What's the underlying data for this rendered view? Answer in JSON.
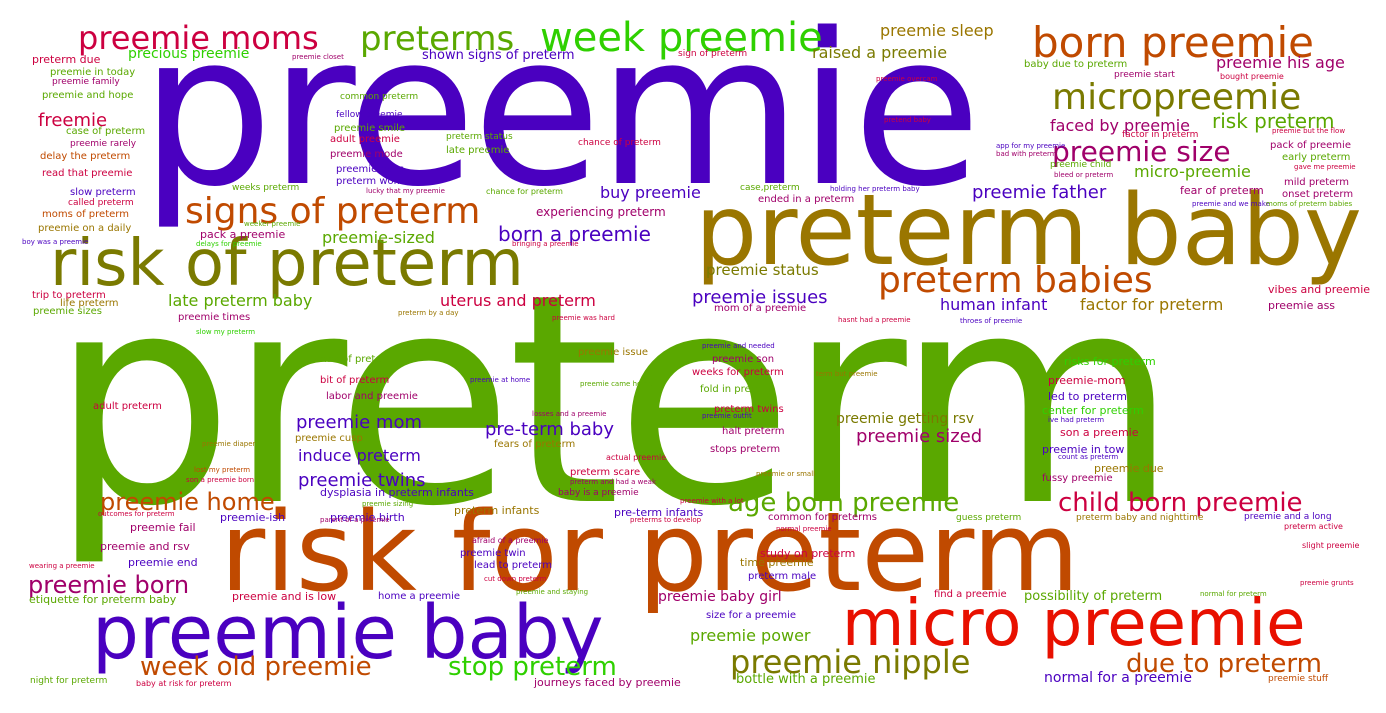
{
  "colors": {
    "purple": "#4a00c0",
    "green": "#5aa800",
    "olive": "#7a7a00",
    "brown": "#c04a00",
    "red": "#e81000",
    "crimson": "#cc0040",
    "magenta": "#a0006a",
    "lime": "#2fd000",
    "gold": "#9a7600"
  },
  "words": [
    "preterm",
    "preemie",
    "preterm baby",
    "risk for preterm",
    "risk of preterm",
    "preemie baby",
    "micro preemie",
    "born preemie",
    "micropreemie",
    "week preemie",
    "preterms",
    "preemie moms",
    "signs of preterm",
    "preterm babies",
    "preemie size",
    "preemie nipple",
    "week old preemie",
    "stop preterm",
    "due to preterm",
    "age born preemie",
    "child born preemie",
    "preemie home",
    "preemie born",
    "risk preterm",
    "born a preemie",
    "preemie father",
    "pre-term baby",
    "preemie sized",
    "preemie mom",
    "preemie twins",
    "induce preterm",
    "preemie issues",
    "uterus and preterm",
    "late preterm baby",
    "preemie-sized",
    "buy preemie",
    "human infant",
    "factor for preterm",
    "micro-preemie",
    "faced by preemie",
    "preemie his age",
    "preemie sleep",
    "raised a preemie",
    "preemie status",
    "preemie getting rsv",
    "preemie power",
    "preemie baby girl",
    "possibility of preterm",
    "normal for a preemie",
    "bottle with a preemie",
    "precious preemie",
    "freemie",
    "shown signs of preterm",
    "experiencing preterm",
    "pack a preemie",
    "preemie and is low",
    "journeys faced by preemie",
    "etiquette for preterm baby",
    "preemie end",
    "preemie and rsv",
    "preemie fail",
    "preemie birth",
    "preemie-ish",
    "dysplasia in preterm infants",
    "pre-term infants",
    "preterm infants",
    "fear of preterm",
    "mild preterm",
    "onset preterm",
    "early preterm",
    "pack of preemie",
    "preemie ass",
    "vibes and preemie",
    "led to preterm",
    "preemie-mom",
    "risks for preterm",
    "center for preterm",
    "son a preemie",
    "preemie in tow",
    "preemie due",
    "fussy preemie",
    "common for preterms",
    "study on preterm",
    "time preemie",
    "preterm male",
    "find a preemie",
    "size for a preemie",
    "preemie twin",
    "lead to preterm",
    "home a preemie",
    "labor and preemie",
    "bit of preterm",
    "terms of preterm",
    "adult preterm",
    "preemie cusp",
    "halt preterm",
    "preterm twins",
    "stops preterm",
    "fold in preterm",
    "weeks for preterm",
    "preemie son",
    "preemie issue",
    "mom of a preemie",
    "ended in a preterm",
    "preemie boys",
    "preterm women",
    "preemie mode",
    "adult preemie",
    "preemie smile",
    "fellow preemie",
    "late preemie",
    "preterm status",
    "common preterm",
    "chance of preterm",
    "weeks preterm",
    "preterm due",
    "preemie in today",
    "preemie family",
    "preemie and hope",
    "case of preterm",
    "preemie rarely",
    "delay the preterm",
    "read that preemie",
    "slow preterm",
    "called preterm",
    "moms of preterm",
    "preemie on a daily",
    "trip to preterm",
    "life preterm",
    "preemie sizes",
    "preemie times",
    "baby due to preterm",
    "preemie start",
    "bought preemie",
    "sign of preterm",
    "preemie closet",
    "preemie overcam",
    "pretend baby",
    "factor in preterm",
    "preemie but the flow",
    "preemie child",
    "gave me preemie",
    "actual preemie",
    "preterm scare",
    "preemie with a lot",
    "guess preterm",
    "preterm baby and nighttime",
    "preemie and a long",
    "preterm active",
    "slight preemie",
    "preemie grunts",
    "normal for preterm",
    "preemie stuff",
    "night for preterm",
    "baby at risk for preterm",
    "preemie at home",
    "preemie came home",
    "preemie and needed",
    "term but preemie",
    "preemie diaper",
    "lost my preterm",
    "son a preemie born",
    "outcomes for preterm",
    "parent of a preemie",
    "afraid of a preemie",
    "cut down preterm",
    "wearing a preemie",
    "preemie and staying",
    "preterms to develop",
    "normal preemie",
    "preemie sizing",
    "preterm and had a weak",
    "baby is a preemie",
    "fears of preterm",
    "losses and a preemie",
    "preemie outfit",
    "preemie or small",
    "count as preterm",
    "ive had preterm",
    "throes of preemie",
    "hasnt had a preemie",
    "preemie was hard",
    "preterm by a day",
    "slow my preterm",
    "delays for preemie",
    "weeker preemie",
    "bringing a preemie",
    "boy was a preemie",
    "case,preterm",
    "holding her preterm baby",
    "chance for preterm",
    "lucky that my preemie",
    "app for my preemie",
    "bad with preterm",
    "bleed or preterm",
    "preemie and we make",
    "moms of preterm babies"
  ]
}
